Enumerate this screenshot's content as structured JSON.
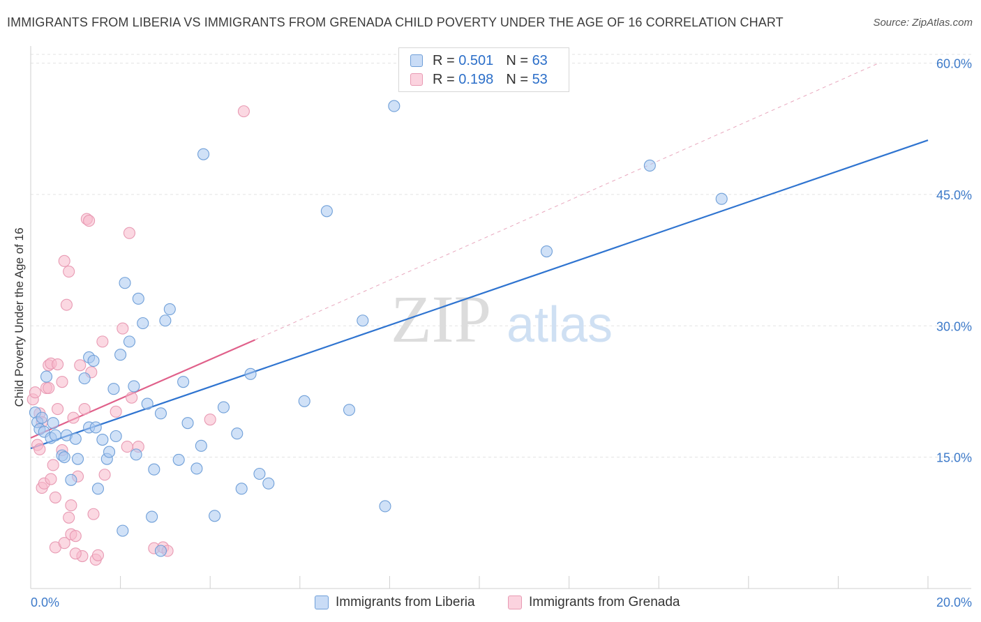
{
  "title": "IMMIGRANTS FROM LIBERIA VS IMMIGRANTS FROM GRENADA CHILD POVERTY UNDER THE AGE OF 16 CORRELATION CHART",
  "source": "Source: ZipAtlas.com",
  "watermark": {
    "zip": "ZIP",
    "atlas": "atlas"
  },
  "legend": {
    "r_label": "R =",
    "n_label": "N =",
    "rows": [
      {
        "r": "0.501",
        "n": "63",
        "color": "#aac8f0"
      },
      {
        "r": "0.198",
        "n": "53",
        "color": "#f7b8cb"
      }
    ]
  },
  "colors": {
    "liberia_fill": "#aac8f0",
    "liberia_stroke": "#6f9fd8",
    "liberia_line": "#2f74d0",
    "grenada_fill": "#f7b8cb",
    "grenada_stroke": "#e89ab3",
    "grenada_line": "#e0608a",
    "axis_tick_text": "#3d7ac9",
    "grid": "#e3e3e3"
  },
  "chart_data": {
    "type": "scatter",
    "title": "IMMIGRANTS FROM LIBERIA VS IMMIGRANTS FROM GRENADA CHILD POVERTY UNDER THE AGE OF 16 CORRELATION CHART",
    "xlabel": "",
    "ylabel": "Child Poverty Under the Age of 16",
    "xlim": [
      0,
      20
    ],
    "ylim": [
      0,
      61
    ],
    "x_tick_labels": [
      {
        "value": 0,
        "label": "0.0%"
      },
      {
        "value": 20,
        "label": "20.0%"
      }
    ],
    "y_tick_labels": [
      {
        "value": 15,
        "label": "15.0%"
      },
      {
        "value": 30,
        "label": "30.0%"
      },
      {
        "value": 45,
        "label": "45.0%"
      },
      {
        "value": 60,
        "label": "60.0%"
      }
    ],
    "grid": true,
    "legend_position": "top-center",
    "series": [
      {
        "name": "Immigrants from Liberia",
        "r": 0.501,
        "n": 63,
        "trend": {
          "x": [
            0,
            20
          ],
          "y": [
            16.0,
            51.2
          ]
        },
        "points": [
          [
            0.1,
            20.1
          ],
          [
            0.15,
            19.0
          ],
          [
            0.2,
            18.2
          ],
          [
            0.25,
            19.5
          ],
          [
            0.3,
            17.9
          ],
          [
            0.35,
            24.2
          ],
          [
            0.45,
            17.2
          ],
          [
            0.5,
            18.9
          ],
          [
            0.55,
            17.5
          ],
          [
            0.7,
            15.2
          ],
          [
            0.75,
            15.0
          ],
          [
            0.8,
            17.5
          ],
          [
            0.9,
            12.4
          ],
          [
            1.0,
            17.1
          ],
          [
            1.05,
            14.8
          ],
          [
            1.2,
            24.0
          ],
          [
            1.3,
            26.4
          ],
          [
            1.3,
            18.4
          ],
          [
            1.4,
            26.0
          ],
          [
            1.45,
            18.4
          ],
          [
            1.5,
            11.4
          ],
          [
            1.6,
            17.0
          ],
          [
            1.7,
            14.8
          ],
          [
            1.75,
            15.6
          ],
          [
            1.85,
            22.8
          ],
          [
            1.9,
            17.4
          ],
          [
            2.0,
            26.7
          ],
          [
            2.05,
            6.6
          ],
          [
            2.1,
            34.9
          ],
          [
            2.2,
            28.2
          ],
          [
            2.3,
            23.1
          ],
          [
            2.35,
            15.3
          ],
          [
            2.4,
            33.1
          ],
          [
            2.5,
            30.3
          ],
          [
            2.6,
            21.1
          ],
          [
            2.7,
            8.2
          ],
          [
            2.75,
            13.6
          ],
          [
            2.9,
            20.0
          ],
          [
            3.0,
            30.6
          ],
          [
            3.1,
            31.9
          ],
          [
            3.3,
            14.7
          ],
          [
            3.4,
            23.6
          ],
          [
            3.5,
            18.9
          ],
          [
            3.7,
            13.7
          ],
          [
            3.8,
            16.3
          ],
          [
            3.85,
            49.6
          ],
          [
            4.1,
            8.3
          ],
          [
            4.3,
            20.7
          ],
          [
            4.6,
            17.7
          ],
          [
            4.7,
            11.4
          ],
          [
            4.9,
            24.5
          ],
          [
            5.1,
            13.1
          ],
          [
            5.3,
            12.0
          ],
          [
            6.1,
            21.4
          ],
          [
            6.6,
            43.1
          ],
          [
            7.1,
            20.4
          ],
          [
            7.4,
            30.6
          ],
          [
            7.9,
            9.4
          ],
          [
            8.1,
            55.1
          ],
          [
            11.5,
            38.5
          ],
          [
            13.8,
            48.3
          ],
          [
            15.4,
            44.5
          ],
          [
            2.9,
            4.3
          ]
        ]
      },
      {
        "name": "Immigrants from Grenada",
        "r": 0.198,
        "n": 53,
        "trend": {
          "x": [
            0,
            5.0
          ],
          "y": [
            17.2,
            28.4
          ]
        },
        "trend_ext": {
          "x": [
            5.0,
            18.9
          ],
          "y": [
            28.4,
            60.0
          ]
        },
        "points": [
          [
            0.05,
            21.6
          ],
          [
            0.1,
            22.4
          ],
          [
            0.15,
            16.4
          ],
          [
            0.2,
            15.9
          ],
          [
            0.25,
            11.5
          ],
          [
            0.3,
            12.0
          ],
          [
            0.35,
            22.9
          ],
          [
            0.4,
            22.9
          ],
          [
            0.4,
            25.5
          ],
          [
            0.45,
            25.7
          ],
          [
            0.5,
            14.1
          ],
          [
            0.55,
            10.4
          ],
          [
            0.55,
            4.7
          ],
          [
            0.6,
            20.5
          ],
          [
            0.7,
            23.6
          ],
          [
            0.7,
            15.8
          ],
          [
            0.75,
            37.4
          ],
          [
            0.75,
            5.2
          ],
          [
            0.8,
            32.4
          ],
          [
            0.85,
            36.2
          ],
          [
            0.85,
            8.1
          ],
          [
            0.9,
            9.5
          ],
          [
            0.9,
            6.2
          ],
          [
            0.95,
            19.5
          ],
          [
            1.0,
            6.0
          ],
          [
            1.05,
            12.8
          ],
          [
            1.1,
            25.5
          ],
          [
            1.15,
            3.7
          ],
          [
            1.2,
            20.5
          ],
          [
            1.25,
            42.2
          ],
          [
            1.3,
            42.0
          ],
          [
            1.35,
            24.7
          ],
          [
            1.4,
            8.5
          ],
          [
            1.45,
            3.3
          ],
          [
            1.5,
            3.8
          ],
          [
            1.6,
            28.2
          ],
          [
            1.65,
            13.0
          ],
          [
            1.9,
            20.2
          ],
          [
            2.05,
            29.7
          ],
          [
            2.15,
            16.2
          ],
          [
            2.2,
            40.6
          ],
          [
            2.25,
            21.8
          ],
          [
            2.4,
            16.2
          ],
          [
            2.75,
            4.6
          ],
          [
            2.95,
            4.7
          ],
          [
            3.05,
            4.3
          ],
          [
            4.0,
            19.3
          ],
          [
            4.75,
            54.5
          ],
          [
            0.2,
            20.0
          ],
          [
            0.6,
            25.6
          ],
          [
            0.45,
            12.5
          ],
          [
            1.0,
            4.0
          ],
          [
            0.25,
            19.0
          ]
        ]
      }
    ]
  }
}
